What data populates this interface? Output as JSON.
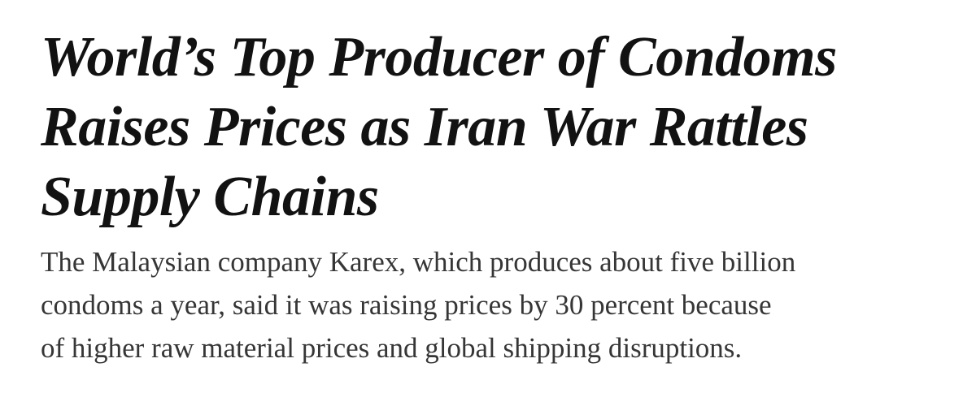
{
  "headline": {
    "lines": [
      "World’s Top Producer of Condoms",
      "Raises Prices as Iran War Rattles",
      "Supply Chains"
    ]
  },
  "summary": {
    "lines": [
      "The Malaysian company Karex, which produces about five billion",
      "condoms a year, said it was raising prices by 30 percent because",
      "of higher raw material prices and global shipping disruptions."
    ]
  }
}
